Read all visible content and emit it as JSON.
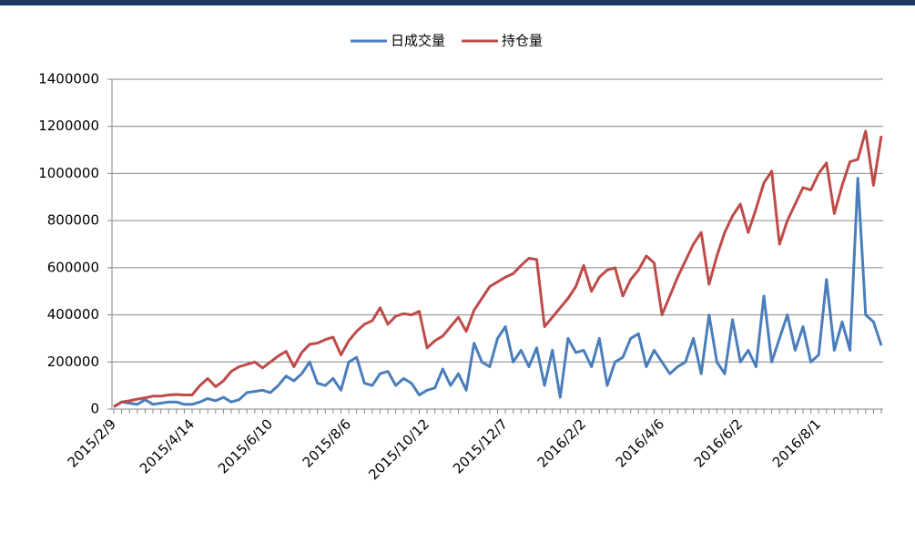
{
  "chart_data": {
    "type": "line",
    "categories": [
      "2015/2/9",
      null,
      null,
      null,
      null,
      null,
      null,
      null,
      null,
      null,
      "2015/4/14",
      null,
      null,
      null,
      null,
      null,
      null,
      null,
      null,
      null,
      "2015/6/10",
      null,
      null,
      null,
      null,
      null,
      null,
      null,
      null,
      null,
      "2015/8/6",
      null,
      null,
      null,
      null,
      null,
      null,
      null,
      null,
      null,
      "2015/10/12",
      null,
      null,
      null,
      null,
      null,
      null,
      null,
      null,
      null,
      "2015/12/7",
      null,
      null,
      null,
      null,
      null,
      null,
      null,
      null,
      null,
      "2016/2/2",
      null,
      null,
      null,
      null,
      null,
      null,
      null,
      null,
      null,
      "2016/4/6",
      null,
      null,
      null,
      null,
      null,
      null,
      null,
      null,
      null,
      "2016/6/2",
      null,
      null,
      null,
      null,
      null,
      null,
      null,
      null,
      null,
      "2016/8/1",
      null,
      null,
      null,
      null,
      null,
      null,
      null,
      null
    ],
    "series": [
      {
        "name": "日成交量",
        "color": "#4a7ebb",
        "values": [
          10000,
          30000,
          25000,
          20000,
          40000,
          20000,
          25000,
          30000,
          30000,
          20000,
          20000,
          30000,
          45000,
          35000,
          50000,
          30000,
          40000,
          70000,
          75000,
          80000,
          70000,
          100000,
          140000,
          120000,
          150000,
          200000,
          110000,
          100000,
          130000,
          80000,
          200000,
          220000,
          110000,
          100000,
          150000,
          160000,
          100000,
          130000,
          110000,
          60000,
          80000,
          90000,
          170000,
          100000,
          150000,
          80000,
          280000,
          200000,
          180000,
          300000,
          350000,
          200000,
          250000,
          180000,
          260000,
          100000,
          250000,
          50000,
          300000,
          240000,
          250000,
          180000,
          300000,
          100000,
          200000,
          220000,
          300000,
          320000,
          180000,
          250000,
          200000,
          150000,
          180000,
          200000,
          300000,
          150000,
          400000,
          200000,
          150000,
          380000,
          200000,
          250000,
          180000,
          480000,
          200000,
          300000,
          400000,
          250000,
          350000,
          200000,
          230000,
          550000,
          250000,
          370000,
          250000,
          980000,
          400000,
          370000,
          270000
        ]
      },
      {
        "name": "持仓量",
        "color": "#be4b48",
        "values": [
          10000,
          30000,
          35000,
          42000,
          48000,
          55000,
          55000,
          60000,
          62000,
          60000,
          60000,
          100000,
          130000,
          95000,
          120000,
          160000,
          180000,
          190000,
          200000,
          175000,
          200000,
          225000,
          245000,
          180000,
          240000,
          275000,
          280000,
          295000,
          305000,
          230000,
          290000,
          330000,
          360000,
          375000,
          430000,
          360000,
          395000,
          405000,
          400000,
          415000,
          260000,
          290000,
          310000,
          350000,
          390000,
          330000,
          420000,
          470000,
          520000,
          540000,
          560000,
          575000,
          610000,
          640000,
          635000,
          350000,
          390000,
          430000,
          470000,
          520000,
          610000,
          500000,
          560000,
          590000,
          600000,
          480000,
          550000,
          590000,
          650000,
          620000,
          400000,
          480000,
          560000,
          630000,
          700000,
          750000,
          530000,
          650000,
          750000,
          820000,
          870000,
          750000,
          850000,
          960000,
          1010000,
          700000,
          800000,
          870000,
          940000,
          930000,
          1000000,
          1045000,
          830000,
          950000,
          1050000,
          1060000,
          1180000,
          950000,
          1160000
        ]
      }
    ],
    "ylim": [
      0,
      1400000
    ],
    "yticks": [
      0,
      200000,
      400000,
      600000,
      800000,
      1000000,
      1200000,
      1400000
    ],
    "grid": true,
    "legend": "top"
  }
}
